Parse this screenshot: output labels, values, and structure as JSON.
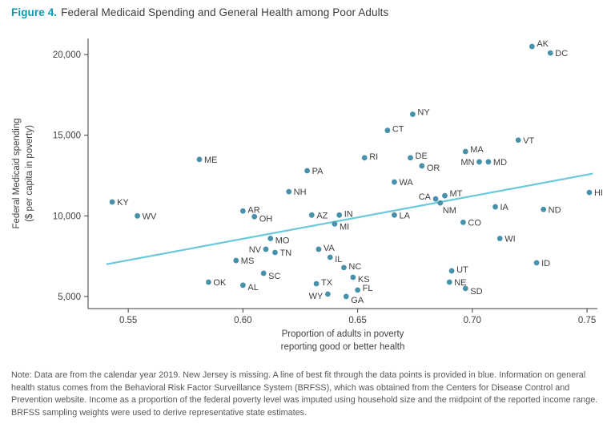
{
  "figure": {
    "label": "Figure 4.",
    "title": "Federal Medicaid Spending and General Health among Poor Adults",
    "accent_color": "#0f98b1"
  },
  "note": "Note: Data are from the calendar year 2019. New Jersey is missing. A line of best fit through the data points is provided in blue. Information on general health status comes from the Behavioral Risk Factor Surveillance System (BRFSS), which was obtained from the Centers for Disease Control and Prevention website. Income as a proportion of the federal poverty level was imputed using household size and the midpoint of the reported income range. BRFSS sampling weights were used to derive representative state estimates.",
  "chart_data": {
    "type": "scatter",
    "title": "Federal Medicaid Spending and General Health among Poor Adults",
    "xlabel_lines": [
      "Proportion of adults in poverty",
      "reporting good or better health"
    ],
    "ylabel_lines": [
      "Federal Medicaid spending",
      "($ per capita in poverty)"
    ],
    "xlim": [
      0.5325,
      0.7545
    ],
    "ylim": [
      4250,
      21000
    ],
    "xticks": [
      0.55,
      0.6,
      0.65,
      0.7,
      0.75
    ],
    "yticks": [
      5000,
      10000,
      15000,
      20000
    ],
    "grid": false,
    "legend": "none",
    "point_color": "#4791aa",
    "trend_color": "#6ac9da",
    "trendline": {
      "x1": 0.5405,
      "y1": 7000,
      "x2": 0.7525,
      "y2": 12620
    },
    "points": [
      {
        "state": "AK",
        "x": 0.726,
        "y": 20500,
        "pos": "r",
        "dy": -4
      },
      {
        "state": "DC",
        "x": 0.734,
        "y": 20100,
        "pos": "r",
        "dy": 0
      },
      {
        "state": "NY",
        "x": 0.674,
        "y": 16300,
        "pos": "r",
        "dy": -3
      },
      {
        "state": "CT",
        "x": 0.663,
        "y": 15300,
        "pos": "r",
        "dy": -2
      },
      {
        "state": "VT",
        "x": 0.72,
        "y": 14700,
        "pos": "r",
        "dy": 0
      },
      {
        "state": "ME",
        "x": 0.581,
        "y": 13500,
        "pos": "r",
        "dy": 0
      },
      {
        "state": "MA",
        "x": 0.697,
        "y": 13990,
        "pos": "r",
        "dy": -3
      },
      {
        "state": "MN",
        "x": 0.703,
        "y": 13350,
        "pos": "l",
        "dy": 0
      },
      {
        "state": "MD",
        "x": 0.707,
        "y": 13350,
        "pos": "r",
        "dy": 0
      },
      {
        "state": "RI",
        "x": 0.653,
        "y": 13600,
        "pos": "r",
        "dy": -2
      },
      {
        "state": "DE",
        "x": 0.673,
        "y": 13600,
        "pos": "r",
        "dy": -3
      },
      {
        "state": "OR",
        "x": 0.678,
        "y": 13100,
        "pos": "r",
        "dy": 2
      },
      {
        "state": "PA",
        "x": 0.628,
        "y": 12800,
        "pos": "r",
        "dy": 0
      },
      {
        "state": "WA",
        "x": 0.666,
        "y": 12100,
        "pos": "r",
        "dy": 0
      },
      {
        "state": "NH",
        "x": 0.62,
        "y": 11500,
        "pos": "r",
        "dy": 0
      },
      {
        "state": "HI",
        "x": 0.751,
        "y": 11450,
        "pos": "r",
        "dy": 0
      },
      {
        "state": "KY",
        "x": 0.543,
        "y": 10860,
        "pos": "r",
        "dy": 0
      },
      {
        "state": "CA",
        "x": 0.684,
        "y": 11050,
        "pos": "l",
        "dy": -3
      },
      {
        "state": "MT",
        "x": 0.688,
        "y": 11250,
        "pos": "r",
        "dy": -3
      },
      {
        "state": "NM",
        "x": 0.686,
        "y": 10800,
        "pos": "br",
        "dy": 0
      },
      {
        "state": "IA",
        "x": 0.71,
        "y": 10560,
        "pos": "r",
        "dy": 0
      },
      {
        "state": "ND",
        "x": 0.731,
        "y": 10400,
        "pos": "r",
        "dy": 0
      },
      {
        "state": "WV",
        "x": 0.554,
        "y": 10000,
        "pos": "r",
        "dy": 0
      },
      {
        "state": "AR",
        "x": 0.6,
        "y": 10300,
        "pos": "r",
        "dy": -2
      },
      {
        "state": "OH",
        "x": 0.605,
        "y": 9950,
        "pos": "r",
        "dy": 2
      },
      {
        "state": "AZ",
        "x": 0.63,
        "y": 10050,
        "pos": "r",
        "dy": 0
      },
      {
        "state": "IN",
        "x": 0.642,
        "y": 10050,
        "pos": "r",
        "dy": -2
      },
      {
        "state": "LA",
        "x": 0.666,
        "y": 10050,
        "pos": "r",
        "dy": 0
      },
      {
        "state": "CO",
        "x": 0.696,
        "y": 9600,
        "pos": "r",
        "dy": 0
      },
      {
        "state": "MI",
        "x": 0.64,
        "y": 9500,
        "pos": "r",
        "dy": 3
      },
      {
        "state": "WI",
        "x": 0.712,
        "y": 8600,
        "pos": "r",
        "dy": 0
      },
      {
        "state": "MO",
        "x": 0.612,
        "y": 8600,
        "pos": "r",
        "dy": 2
      },
      {
        "state": "NV",
        "x": 0.61,
        "y": 7930,
        "pos": "l",
        "dy": 0
      },
      {
        "state": "TN",
        "x": 0.614,
        "y": 7730,
        "pos": "r",
        "dy": 0
      },
      {
        "state": "VA",
        "x": 0.633,
        "y": 7930,
        "pos": "r",
        "dy": -2
      },
      {
        "state": "IL",
        "x": 0.638,
        "y": 7430,
        "pos": "r",
        "dy": 2
      },
      {
        "state": "MS",
        "x": 0.597,
        "y": 7230,
        "pos": "r",
        "dy": 0
      },
      {
        "state": "ID",
        "x": 0.728,
        "y": 7090,
        "pos": "r",
        "dy": 0
      },
      {
        "state": "NC",
        "x": 0.644,
        "y": 6790,
        "pos": "r",
        "dy": -2
      },
      {
        "state": "SC",
        "x": 0.609,
        "y": 6440,
        "pos": "r",
        "dy": 3
      },
      {
        "state": "UT",
        "x": 0.691,
        "y": 6590,
        "pos": "r",
        "dy": -2
      },
      {
        "state": "KS",
        "x": 0.648,
        "y": 6190,
        "pos": "r",
        "dy": 2
      },
      {
        "state": "OK",
        "x": 0.585,
        "y": 5890,
        "pos": "r",
        "dy": 0
      },
      {
        "state": "NE",
        "x": 0.69,
        "y": 5890,
        "pos": "r",
        "dy": 0
      },
      {
        "state": "TX",
        "x": 0.632,
        "y": 5790,
        "pos": "r",
        "dy": -2
      },
      {
        "state": "AL",
        "x": 0.6,
        "y": 5700,
        "pos": "r",
        "dy": 2
      },
      {
        "state": "SD",
        "x": 0.697,
        "y": 5500,
        "pos": "r",
        "dy": 3
      },
      {
        "state": "FL",
        "x": 0.65,
        "y": 5400,
        "pos": "r",
        "dy": -3
      },
      {
        "state": "WY",
        "x": 0.637,
        "y": 5150,
        "pos": "l",
        "dy": 2
      },
      {
        "state": "GA",
        "x": 0.645,
        "y": 5000,
        "pos": "r",
        "dy": 4
      }
    ]
  }
}
